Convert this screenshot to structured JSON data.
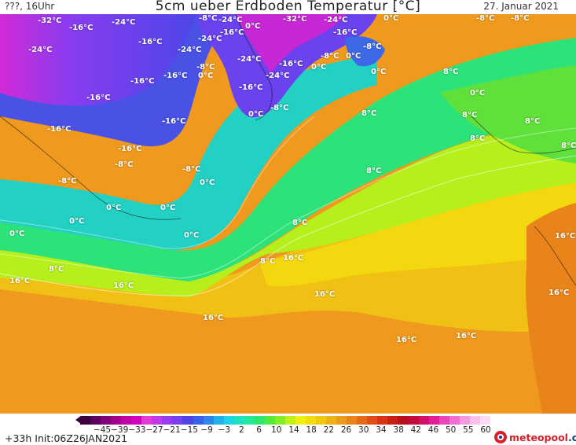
{
  "header": {
    "left": "???, 16Uhr",
    "title": "5cm ueber Erdboden Temperatur [°C]",
    "date": "27. Januar 2021"
  },
  "map_labels": [
    {
      "text": "-32°C"
    },
    {
      "text": "-16°C"
    },
    {
      "text": "-24°C"
    },
    {
      "text": "-24°C"
    },
    {
      "text": "-16°C"
    },
    {
      "text": "-8°C"
    },
    {
      "text": "-32°C"
    },
    {
      "text": "-24°C"
    },
    {
      "text": "0°C"
    },
    {
      "text": "-8°C"
    },
    {
      "text": "-8°C"
    },
    {
      "text": "-24°C"
    },
    {
      "text": "-24°C"
    },
    {
      "text": "-16°C"
    },
    {
      "text": "0°C"
    },
    {
      "text": "-16°C"
    },
    {
      "text": "-24°C"
    },
    {
      "text": "-24°C"
    },
    {
      "text": "-8°C"
    },
    {
      "text": "0°C"
    },
    {
      "text": "-8°C"
    },
    {
      "text": "-16°C"
    },
    {
      "text": "-24°C"
    },
    {
      "text": "-16°C"
    },
    {
      "text": "0°C"
    },
    {
      "text": "0°C"
    },
    {
      "text": "-8°C"
    },
    {
      "text": "0°C"
    },
    {
      "text": "8°C"
    },
    {
      "text": "-16°C"
    },
    {
      "text": "-16°C"
    },
    {
      "text": "0°C"
    },
    {
      "text": "-16°C"
    },
    {
      "text": "0°C"
    },
    {
      "text": "-16°C"
    },
    {
      "text": "-8°C"
    },
    {
      "text": "8°C"
    },
    {
      "text": "8°C"
    },
    {
      "text": "8°C"
    },
    {
      "text": "-16°C"
    },
    {
      "text": "-16°C"
    },
    {
      "text": "-8°C"
    },
    {
      "text": "-8°C"
    },
    {
      "text": "8°C"
    },
    {
      "text": "8°C"
    },
    {
      "text": "-8°C"
    },
    {
      "text": "0°C"
    },
    {
      "text": "0°C"
    },
    {
      "text": "0°C"
    },
    {
      "text": "0°C"
    },
    {
      "text": "8°C"
    },
    {
      "text": "0°C"
    },
    {
      "text": "16°C"
    },
    {
      "text": "0°C"
    },
    {
      "text": "8°C"
    },
    {
      "text": "16°C"
    },
    {
      "text": "8°C"
    },
    {
      "text": "8°C"
    },
    {
      "text": "16°C"
    },
    {
      "text": "16°C"
    },
    {
      "text": "16°C"
    },
    {
      "text": "16°C"
    },
    {
      "text": "16°C"
    },
    {
      "text": "16°C"
    },
    {
      "text": "16°C"
    }
  ],
  "colorbar": {
    "labels": [
      "−45",
      "−39",
      "−33",
      "−27",
      "−21",
      "−15",
      "−9",
      "−3",
      "2",
      "6",
      "10",
      "14",
      "18",
      "22",
      "26",
      "30",
      "34",
      "38",
      "42",
      "46",
      "50",
      "55",
      "60"
    ],
    "colors": [
      "#3a0040",
      "#5a005e",
      "#80007a",
      "#a4008f",
      "#c000a6",
      "#d400c0",
      "#e23cd6",
      "#c23be8",
      "#9a3cf0",
      "#7740ee",
      "#4f44e6",
      "#3a5fe8",
      "#2f86ee",
      "#22b0ea",
      "#1fd2e4",
      "#20e2c0",
      "#26e79a",
      "#2fe66e",
      "#52ea3c",
      "#86ee28",
      "#bff018",
      "#eef010",
      "#f3dd10",
      "#f1c712",
      "#eeb218",
      "#ec9c1c",
      "#e9841a",
      "#e56a18",
      "#df4e16",
      "#d83414",
      "#cc1e12",
      "#b8101a",
      "#c20a3c",
      "#d2106a",
      "#e01e98",
      "#ea44bc",
      "#f070d2",
      "#f69ae0",
      "#fbbfec",
      "#fcdcf4"
    ]
  },
  "footer": {
    "left": "+33h  Init:06Z26JAN2021",
    "brand": "meteopool",
    "brand_tld": ".org"
  }
}
